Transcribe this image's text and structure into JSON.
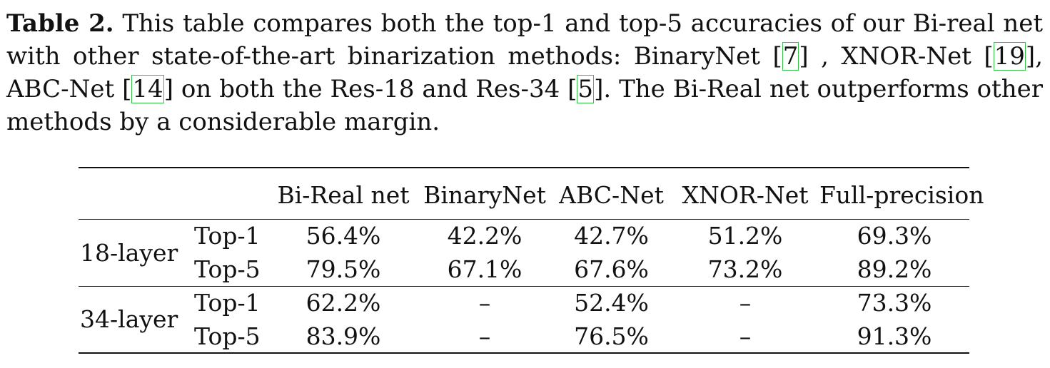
{
  "caption": {
    "label": "Table 2.",
    "text_1": " This table compares both the top-1 and top-5 accuracies of our Bi-real net with other state-of-the-art binarization methods: BinaryNet ",
    "cite_1": "7",
    "text_2": " , XNOR-Net ",
    "cite_2": "19",
    "text_3": ", ABC-Net ",
    "cite_3": "14",
    "text_4": " on both the Res-18 and Res-34 ",
    "cite_4": "5",
    "text_5": ". The Bi-Real net outperforms other methods by a considerable margin."
  },
  "table": {
    "headers": [
      "Bi-Real net",
      "BinaryNet",
      "ABC-Net",
      "XNOR-Net",
      "Full-precision"
    ],
    "groups": [
      {
        "label": "18-layer",
        "rows": [
          {
            "metric": "Top-1",
            "values": [
              "56.4%",
              "42.2%",
              "42.7%",
              "51.2%",
              "69.3%"
            ]
          },
          {
            "metric": "Top-5",
            "values": [
              "79.5%",
              "67.1%",
              "67.6%",
              "73.2%",
              "89.2%"
            ]
          }
        ]
      },
      {
        "label": "34-layer",
        "rows": [
          {
            "metric": "Top-1",
            "values": [
              "62.2%",
              "–",
              "52.4%",
              "–",
              "73.3%"
            ]
          },
          {
            "metric": "Top-5",
            "values": [
              "83.9%",
              "–",
              "76.5%",
              "–",
              "91.3%"
            ]
          }
        ]
      }
    ]
  }
}
